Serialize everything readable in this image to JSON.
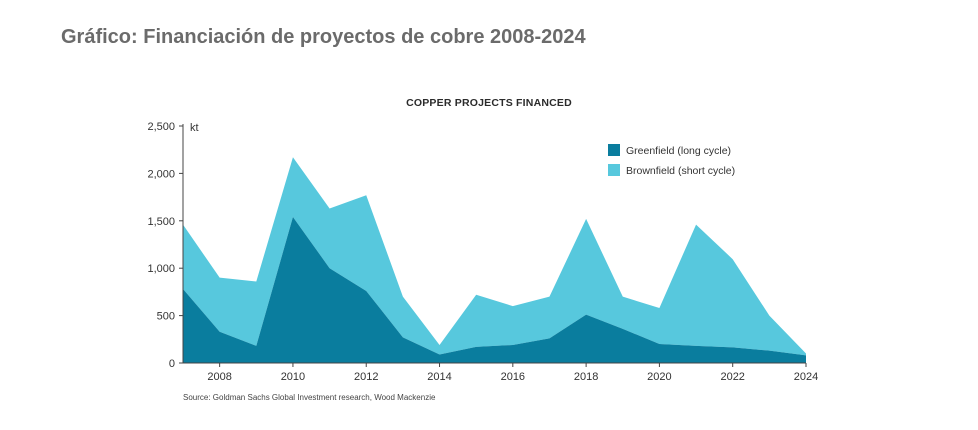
{
  "page": {
    "heading": "Gráfico: Financiación de proyectos de cobre 2008-2024"
  },
  "chart_data": {
    "type": "area",
    "stacked": true,
    "title": "COPPER PROJECTS FINANCED",
    "ylabel": "kt",
    "xlabel": "",
    "x": [
      2007,
      2008,
      2009,
      2010,
      2011,
      2012,
      2013,
      2014,
      2015,
      2016,
      2017,
      2018,
      2019,
      2020,
      2021,
      2022,
      2023,
      2024
    ],
    "x_ticks": [
      "2008",
      "2010",
      "2012",
      "2014",
      "2016",
      "2018",
      "2020",
      "2022",
      "2024"
    ],
    "y_ticks": [
      "0",
      "500",
      "1,000",
      "1,500",
      "2,000",
      "2,500"
    ],
    "xlim": [
      2007,
      2024
    ],
    "ylim": [
      0,
      2500
    ],
    "series": [
      {
        "name": "Greenfield (long cycle)",
        "color": "#0a7d9e",
        "values": [
          780,
          330,
          180,
          1540,
          1000,
          760,
          270,
          90,
          170,
          190,
          260,
          510,
          360,
          200,
          180,
          165,
          130,
          80
        ]
      },
      {
        "name": "Brownfield (short cycle)",
        "color": "#57c8dd",
        "values": [
          680,
          570,
          680,
          630,
          630,
          1010,
          430,
          100,
          550,
          410,
          440,
          1010,
          340,
          380,
          1280,
          930,
          370,
          20
        ]
      }
    ],
    "legend_position": "top-right",
    "grid": false,
    "source": "Source: Goldman Sachs Global Investment research, Wood Mackenzie"
  }
}
